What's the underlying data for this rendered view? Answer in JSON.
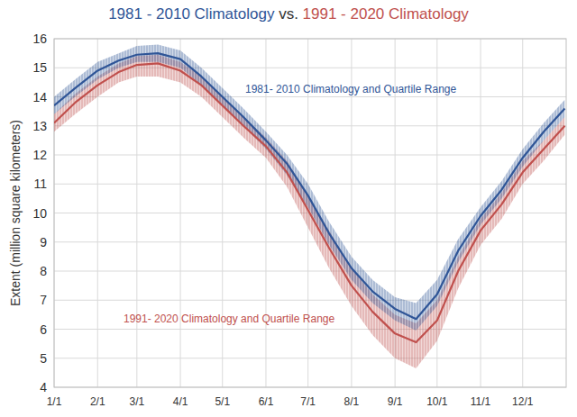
{
  "chart_data": {
    "type": "line",
    "title": "1981 - 2010 Climatology vs. 1991 - 2020 Climatology",
    "y_label": "Extent (million square kilometers)",
    "annotations": [
      {
        "text": "1981- 2010 Climatology and Quartile Range",
        "color": "#2f5597"
      },
      {
        "text": "1991- 2020 Climatology and Quartile Range",
        "color": "#c0504d"
      }
    ],
    "x": [
      1,
      16,
      32,
      47,
      60,
      75,
      91,
      106,
      121,
      136,
      152,
      167,
      182,
      197,
      213,
      228,
      244,
      259,
      274,
      289,
      305,
      320,
      335,
      350,
      365
    ],
    "xlim": [
      1,
      366
    ],
    "xticks": [
      {
        "value": 1,
        "label": "1/1"
      },
      {
        "value": 32,
        "label": "2/1"
      },
      {
        "value": 60,
        "label": "3/1"
      },
      {
        "value": 91,
        "label": "4/1"
      },
      {
        "value": 121,
        "label": "5/1"
      },
      {
        "value": 152,
        "label": "6/1"
      },
      {
        "value": 182,
        "label": "7/1"
      },
      {
        "value": 213,
        "label": "8/1"
      },
      {
        "value": 244,
        "label": "9/1"
      },
      {
        "value": 274,
        "label": "10/1"
      },
      {
        "value": 305,
        "label": "11/1"
      },
      {
        "value": 335,
        "label": "12/1"
      }
    ],
    "ylim": [
      4,
      16
    ],
    "yticks": [
      4,
      5,
      6,
      7,
      8,
      9,
      10,
      11,
      12,
      13,
      14,
      15,
      16
    ],
    "grid": true,
    "series": [
      {
        "name": "1981 - 2010 Climatology",
        "color": "#2f5597",
        "values": [
          13.7,
          14.3,
          14.9,
          15.25,
          15.45,
          15.5,
          15.3,
          14.7,
          14.0,
          13.3,
          12.5,
          11.7,
          10.6,
          9.3,
          8.1,
          7.3,
          6.7,
          6.35,
          7.2,
          8.7,
          9.9,
          10.8,
          11.9,
          12.8,
          13.6
        ],
        "upper": [
          14.0,
          14.6,
          15.2,
          15.5,
          15.75,
          15.8,
          15.6,
          15.0,
          14.3,
          13.6,
          12.8,
          12.0,
          11.0,
          9.7,
          8.5,
          7.7,
          7.1,
          6.9,
          7.7,
          9.1,
          10.2,
          11.1,
          12.2,
          13.1,
          13.9
        ],
        "lower": [
          13.4,
          14.0,
          14.6,
          15.0,
          15.2,
          15.2,
          15.0,
          14.4,
          13.7,
          13.0,
          12.2,
          11.3,
          10.2,
          8.9,
          7.7,
          6.9,
          6.3,
          5.95,
          6.8,
          8.3,
          9.6,
          10.5,
          11.6,
          12.5,
          13.3
        ]
      },
      {
        "name": "1991 - 2020 Climatology",
        "color": "#c0504d",
        "values": [
          13.1,
          13.8,
          14.4,
          14.85,
          15.1,
          15.15,
          14.9,
          14.4,
          13.7,
          13.0,
          12.3,
          11.4,
          10.1,
          8.8,
          7.5,
          6.6,
          5.85,
          5.55,
          6.3,
          8.0,
          9.4,
          10.3,
          11.4,
          12.2,
          13.0
        ],
        "upper": [
          13.4,
          14.1,
          14.7,
          15.15,
          15.4,
          15.45,
          15.2,
          14.7,
          14.0,
          13.3,
          12.6,
          11.8,
          10.6,
          9.4,
          8.1,
          7.2,
          6.5,
          6.2,
          7.0,
          8.5,
          9.8,
          10.7,
          11.8,
          12.5,
          13.3
        ],
        "lower": [
          12.8,
          13.4,
          14.0,
          14.5,
          14.7,
          14.7,
          14.5,
          14.0,
          13.3,
          12.6,
          11.9,
          10.9,
          9.5,
          8.1,
          6.8,
          5.8,
          5.0,
          4.65,
          5.6,
          7.4,
          8.9,
          9.8,
          11.0,
          11.8,
          12.7
        ]
      }
    ]
  }
}
